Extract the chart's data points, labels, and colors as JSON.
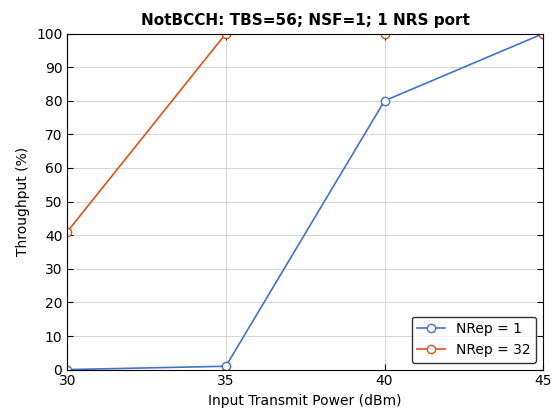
{
  "title": "NotBCCH: TBS=56; NSF=1; 1 NRS port",
  "xlabel": "Input Transmit Power (dBm)",
  "ylabel": "Throughput (%)",
  "xlim": [
    30,
    45
  ],
  "ylim": [
    0,
    100
  ],
  "xticks": [
    30,
    35,
    40,
    45
  ],
  "yticks": [
    0,
    10,
    20,
    30,
    40,
    50,
    60,
    70,
    80,
    90,
    100
  ],
  "line1": {
    "x": [
      30,
      35,
      40,
      45
    ],
    "y": [
      0,
      1,
      80,
      100
    ],
    "color": "#4472C4",
    "label": "NRep = 1",
    "marker": "o",
    "linewidth": 1.2,
    "markersize": 6,
    "markerfacecolor": "white"
  },
  "line2": {
    "x": [
      30,
      35,
      40,
      45
    ],
    "y": [
      41,
      100,
      100,
      100
    ],
    "color": "#D95319",
    "label": "NRep = 32",
    "marker": "o",
    "linewidth": 1.2,
    "markersize": 6,
    "markerfacecolor": "white"
  },
  "legend_loc": "lower right",
  "grid": true,
  "background_color": "#ffffff",
  "title_fontsize": 11,
  "label_fontsize": 10,
  "tick_fontsize": 10
}
